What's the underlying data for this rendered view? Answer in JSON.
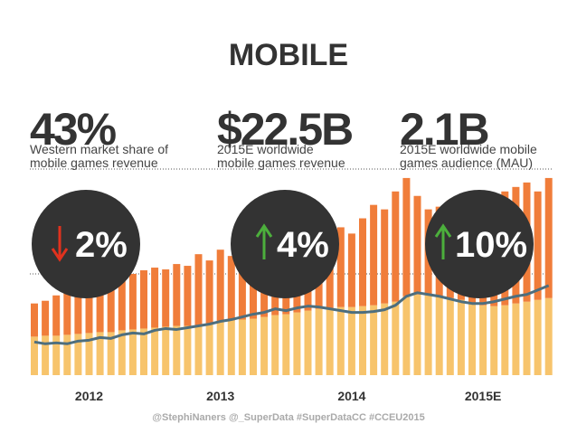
{
  "title": "MOBILE",
  "stats": [
    {
      "value": "43%",
      "caption": [
        "Western market share of",
        "mobile games revenue"
      ]
    },
    {
      "value": "$22.5B",
      "caption": [
        "2015E worldwide",
        "mobile games revenue"
      ]
    },
    {
      "value": "2.1B",
      "caption": [
        "2015E worldwide mobile",
        "games audience (MAU)"
      ]
    }
  ],
  "changes": [
    "2%",
    "4%",
    "10%"
  ],
  "footer": "@StephiNaners   @_SuperData   #SuperDataCC   #CCEU2015",
  "chart_data": {
    "type": "bar",
    "stacked": true,
    "categories": [
      null,
      null,
      null,
      null,
      null,
      "2012",
      null,
      null,
      null,
      null,
      null,
      null,
      null,
      null,
      null,
      null,
      null,
      "2013",
      null,
      null,
      null,
      null,
      null,
      null,
      null,
      null,
      null,
      null,
      null,
      "2014",
      null,
      null,
      null,
      null,
      null,
      null,
      null,
      null,
      null,
      null,
      null,
      "2015E",
      null,
      null,
      null,
      null,
      null,
      null
    ],
    "ylim": [
      0,
      230
    ],
    "series": [
      {
        "color": "#f7c46c",
        "values": [
          43,
          44,
          44,
          45,
          46,
          47,
          48,
          48,
          50,
          51,
          52,
          53,
          54,
          55,
          55,
          56,
          58,
          60,
          61,
          62,
          63,
          65,
          67,
          68,
          70,
          72,
          74,
          75,
          76,
          76,
          77,
          78,
          80,
          82,
          88,
          90,
          90,
          88,
          86,
          84,
          80,
          78,
          77,
          78,
          80,
          82,
          84,
          86
        ]
      },
      {
        "color": "#f07d3a",
        "values": [
          37,
          39,
          45,
          47,
          49,
          51,
          54,
          58,
          60,
          62,
          65,
          67,
          64,
          69,
          67,
          79,
          70,
          80,
          72,
          84,
          85,
          87,
          91,
          95,
          70,
          76,
          81,
          85,
          89,
          82,
          98,
          112,
          105,
          123,
          132,
          110,
          95,
          100,
          109,
          106,
          105,
          117,
          123,
          127,
          130,
          133,
          121,
          134
        ]
      },
      {
        "type": "line",
        "color": "#4d6e7e",
        "values": [
          37,
          35,
          36,
          35,
          38,
          39,
          42,
          41,
          45,
          47,
          46,
          50,
          52,
          51,
          53,
          55,
          57,
          60,
          62,
          65,
          68,
          70,
          74,
          72,
          75,
          77,
          76,
          74,
          72,
          70,
          70,
          71,
          73,
          78,
          88,
          92,
          90,
          88,
          85,
          82,
          80,
          80,
          82,
          85,
          88,
          90,
          95,
          100
        ]
      }
    ]
  }
}
